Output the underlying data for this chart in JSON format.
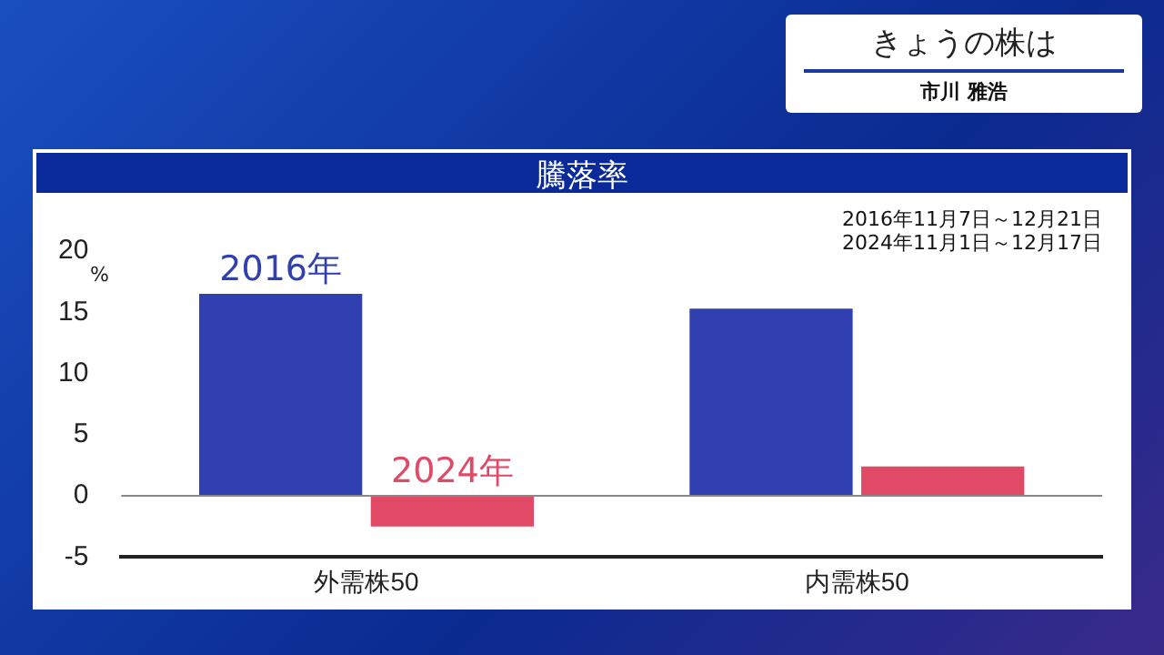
{
  "chart_data": {
    "type": "bar",
    "title": "騰落率",
    "ylabel": "%",
    "categories": [
      "外需株50",
      "内需株50"
    ],
    "series": [
      {
        "name": "2016年",
        "color": "#3040b0",
        "values": [
          16.5,
          15.3
        ]
      },
      {
        "name": "2024年",
        "color": "#e04a66",
        "values": [
          -2.5,
          2.4
        ]
      }
    ],
    "ref_lines": [
      {
        "axis": "y",
        "value": 0,
        "color": "#888888"
      }
    ],
    "ylim": [
      -5,
      20
    ],
    "yticks": [
      -5,
      0,
      5,
      10,
      15,
      20
    ],
    "grid": false,
    "legend": false,
    "annotations": [
      "2016年11月7日～12月21日",
      "2024年11月1日～12月17日",
      "きょうの株は",
      "市川 雅浩"
    ]
  }
}
